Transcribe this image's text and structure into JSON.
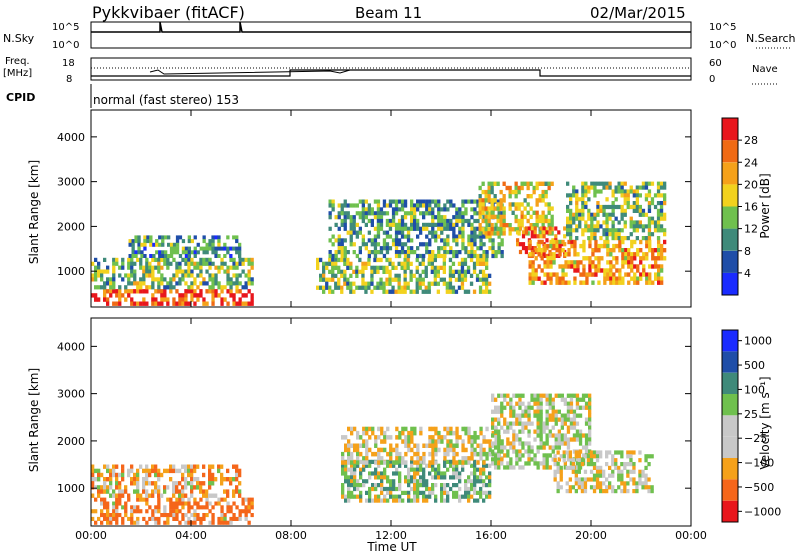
{
  "header": {
    "station": "Pykkvibaer (fitACF)",
    "beam": "Beam 11",
    "date": "02/Mar/2015"
  },
  "top_panels": {
    "nsky_label": "N.Sky",
    "nsearch_label": "N.Search",
    "nsky_ticks": [
      "10^5",
      "10^0"
    ],
    "nsearch_ticks": [
      "10^5",
      "10^0"
    ],
    "freq_label": "Freq.",
    "freq_unit": "[MHz]",
    "freq_ticks": [
      "18",
      "8"
    ],
    "nave_label": "Nave",
    "nave_ticks": [
      "60",
      "0"
    ],
    "cpid_label": "CPID",
    "cpid_value": "normal (fast stereo) 153"
  },
  "colors": {
    "power": [
      "#1a2bff",
      "#1f4ea8",
      "#3f8a7a",
      "#6fc04e",
      "#f2d21e",
      "#f5a11a",
      "#f06a14",
      "#e8161c"
    ],
    "velocity": [
      "#e8161c",
      "#f5661a",
      "#f5a11a",
      "#c8c8c8",
      "#c8c8c8",
      "#6fc04e",
      "#3f8a7a",
      "#1f4ea8",
      "#1a2bff"
    ],
    "frame": "#000000"
  },
  "chart_data": [
    {
      "type": "heatmap",
      "name": "power",
      "ylabel": "Slant Range [km]",
      "yticks": [
        "1000",
        "2000",
        "3000",
        "4000"
      ],
      "ylim": [
        200,
        4600
      ],
      "xlim": [
        0,
        24
      ],
      "colorbar_label": "Power [dB]",
      "colorbar_ticks": [
        "4",
        "8",
        "12",
        "16",
        "20",
        "24",
        "28"
      ],
      "clim": [
        0,
        32
      ],
      "features": [
        {
          "t0": 0.0,
          "t1": 6.5,
          "r0": 230,
          "r1": 600,
          "value": 27
        },
        {
          "t0": 0.0,
          "t1": 6.5,
          "r0": 600,
          "r1": 1300,
          "value": 14
        },
        {
          "t0": 1.5,
          "t1": 6.0,
          "r0": 1300,
          "r1": 1800,
          "value": 10
        },
        {
          "t0": 9.0,
          "t1": 16.0,
          "r0": 500,
          "r1": 1300,
          "value": 14
        },
        {
          "t0": 9.5,
          "t1": 16.5,
          "r0": 1300,
          "r1": 2600,
          "value": 11
        },
        {
          "t0": 15.5,
          "t1": 18.5,
          "r0": 1800,
          "r1": 3000,
          "value": 18
        },
        {
          "t0": 17.0,
          "t1": 19.0,
          "r0": 1300,
          "r1": 2000,
          "value": 25
        },
        {
          "t0": 17.5,
          "t1": 23.0,
          "r0": 700,
          "r1": 1700,
          "value": 22
        },
        {
          "t0": 19.0,
          "t1": 23.0,
          "r0": 1700,
          "r1": 3000,
          "value": 14
        }
      ]
    },
    {
      "type": "heatmap",
      "name": "velocity",
      "ylabel": "Slant Range [km]",
      "yticks": [
        "1000",
        "2000",
        "3000",
        "4000"
      ],
      "ylim": [
        200,
        4600
      ],
      "xlim": [
        0,
        24
      ],
      "xlabel": "Time UT",
      "xticks": [
        "00:00",
        "04:00",
        "08:00",
        "12:00",
        "16:00",
        "20:00",
        "00:00"
      ],
      "colorbar_label": "Velocity [m s⁻¹]",
      "colorbar_ticks": [
        "1000",
        "500",
        "100",
        "25",
        "−25",
        "−100",
        "−500",
        "−1000"
      ],
      "features": [
        {
          "t0": 0.0,
          "t1": 6.5,
          "r0": 230,
          "r1": 800,
          "value": -150
        },
        {
          "t0": 0.0,
          "t1": 6.0,
          "r0": 800,
          "r1": 1500,
          "value": -60
        },
        {
          "t0": 10.0,
          "t1": 16.0,
          "r0": 700,
          "r1": 1600,
          "value": 60
        },
        {
          "t0": 10.0,
          "t1": 16.5,
          "r0": 1500,
          "r1": 2300,
          "value": -20
        },
        {
          "t0": 16.0,
          "t1": 20.0,
          "r0": 1400,
          "r1": 3000,
          "value": 10
        },
        {
          "t0": 18.5,
          "t1": 22.5,
          "r0": 900,
          "r1": 1800,
          "value": 0
        }
      ]
    }
  ]
}
